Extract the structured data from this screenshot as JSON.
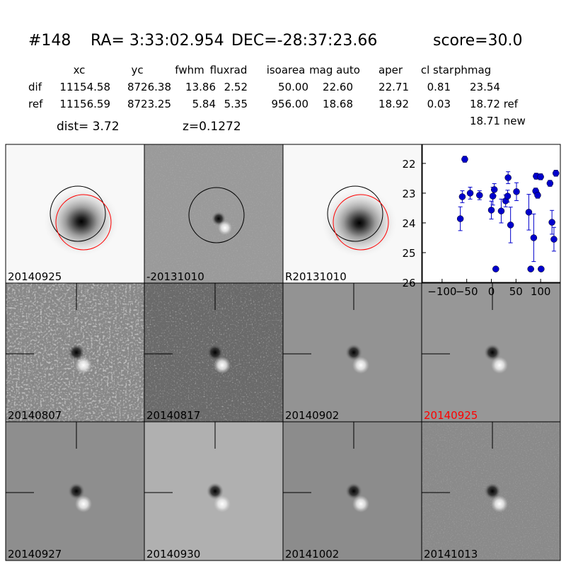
{
  "header": {
    "id": "#148",
    "ra": "RA= 3:33:02.954",
    "dec": "DEC=-28:37:23.66",
    "score": "score=30.0"
  },
  "table": {
    "columns": [
      "xc",
      "yc",
      "fwhm",
      "fluxrad",
      "isoarea",
      "mag auto",
      "aper",
      "cl star",
      "phmag"
    ],
    "rows": [
      [
        "dif",
        "11154.58",
        "8726.38",
        "13.86",
        "2.52",
        "50.00",
        "22.60",
        "22.71",
        "0.81",
        "23.54"
      ],
      [
        "ref",
        "11156.59",
        "8723.25",
        "5.84",
        "5.35",
        "956.00",
        "18.68",
        "18.92",
        "0.03",
        "18.72 ref"
      ]
    ],
    "extra": "18.71 new"
  },
  "dist": "dist=  3.72",
  "z": "z=0.1272",
  "panels": [
    {
      "label": "20140925",
      "color": "#000000"
    },
    {
      "label": "-20131010",
      "color": "#000000"
    },
    {
      "label": "R20131010",
      "color": "#000000"
    },
    {
      "label": "20140807",
      "color": "#000000"
    },
    {
      "label": "20140817",
      "color": "#000000"
    },
    {
      "label": "20140902",
      "color": "#000000"
    },
    {
      "label": "20140925",
      "color": "#ff0000"
    },
    {
      "label": "20140927",
      "color": "#000000"
    },
    {
      "label": "20140930",
      "color": "#000000"
    },
    {
      "label": "20141002",
      "color": "#000000"
    },
    {
      "label": "20141013",
      "color": "#000000"
    }
  ],
  "lightcurve": {
    "type": "scatter",
    "color": "#0000cc",
    "x": [
      -63,
      -59,
      -54,
      -43,
      -24,
      0,
      3,
      6,
      9,
      20,
      29,
      33,
      34,
      39,
      51,
      76,
      80,
      86,
      90,
      91,
      94,
      100,
      101,
      119,
      123,
      127,
      131
    ],
    "values": [
      23.86,
      23.12,
      21.86,
      23.0,
      23.07,
      23.57,
      23.1,
      22.88,
      25.55,
      23.6,
      23.26,
      23.1,
      22.48,
      24.07,
      22.95,
      23.64,
      25.55,
      24.5,
      22.93,
      22.43,
      23.07,
      22.45,
      25.55,
      22.67,
      23.98,
      24.55,
      22.33
    ],
    "errors": [
      0.4,
      0.2,
      0.1,
      0.2,
      0.15,
      0.3,
      0.3,
      0.2,
      null,
      0.4,
      0.2,
      0.2,
      0.2,
      0.6,
      0.3,
      0.6,
      null,
      0.8,
      0.1,
      0.1,
      0.1,
      0.1,
      null,
      0.1,
      0.4,
      0.4,
      0.1
    ],
    "xlim": [
      -140,
      140
    ],
    "ylim": [
      26,
      21.36
    ],
    "xticks": [
      {
        "value": -100,
        "label": "−100"
      },
      {
        "value": -50,
        "label": "−50"
      },
      0,
      50,
      100
    ],
    "yticks": [
      22,
      23,
      24,
      25,
      26
    ]
  }
}
